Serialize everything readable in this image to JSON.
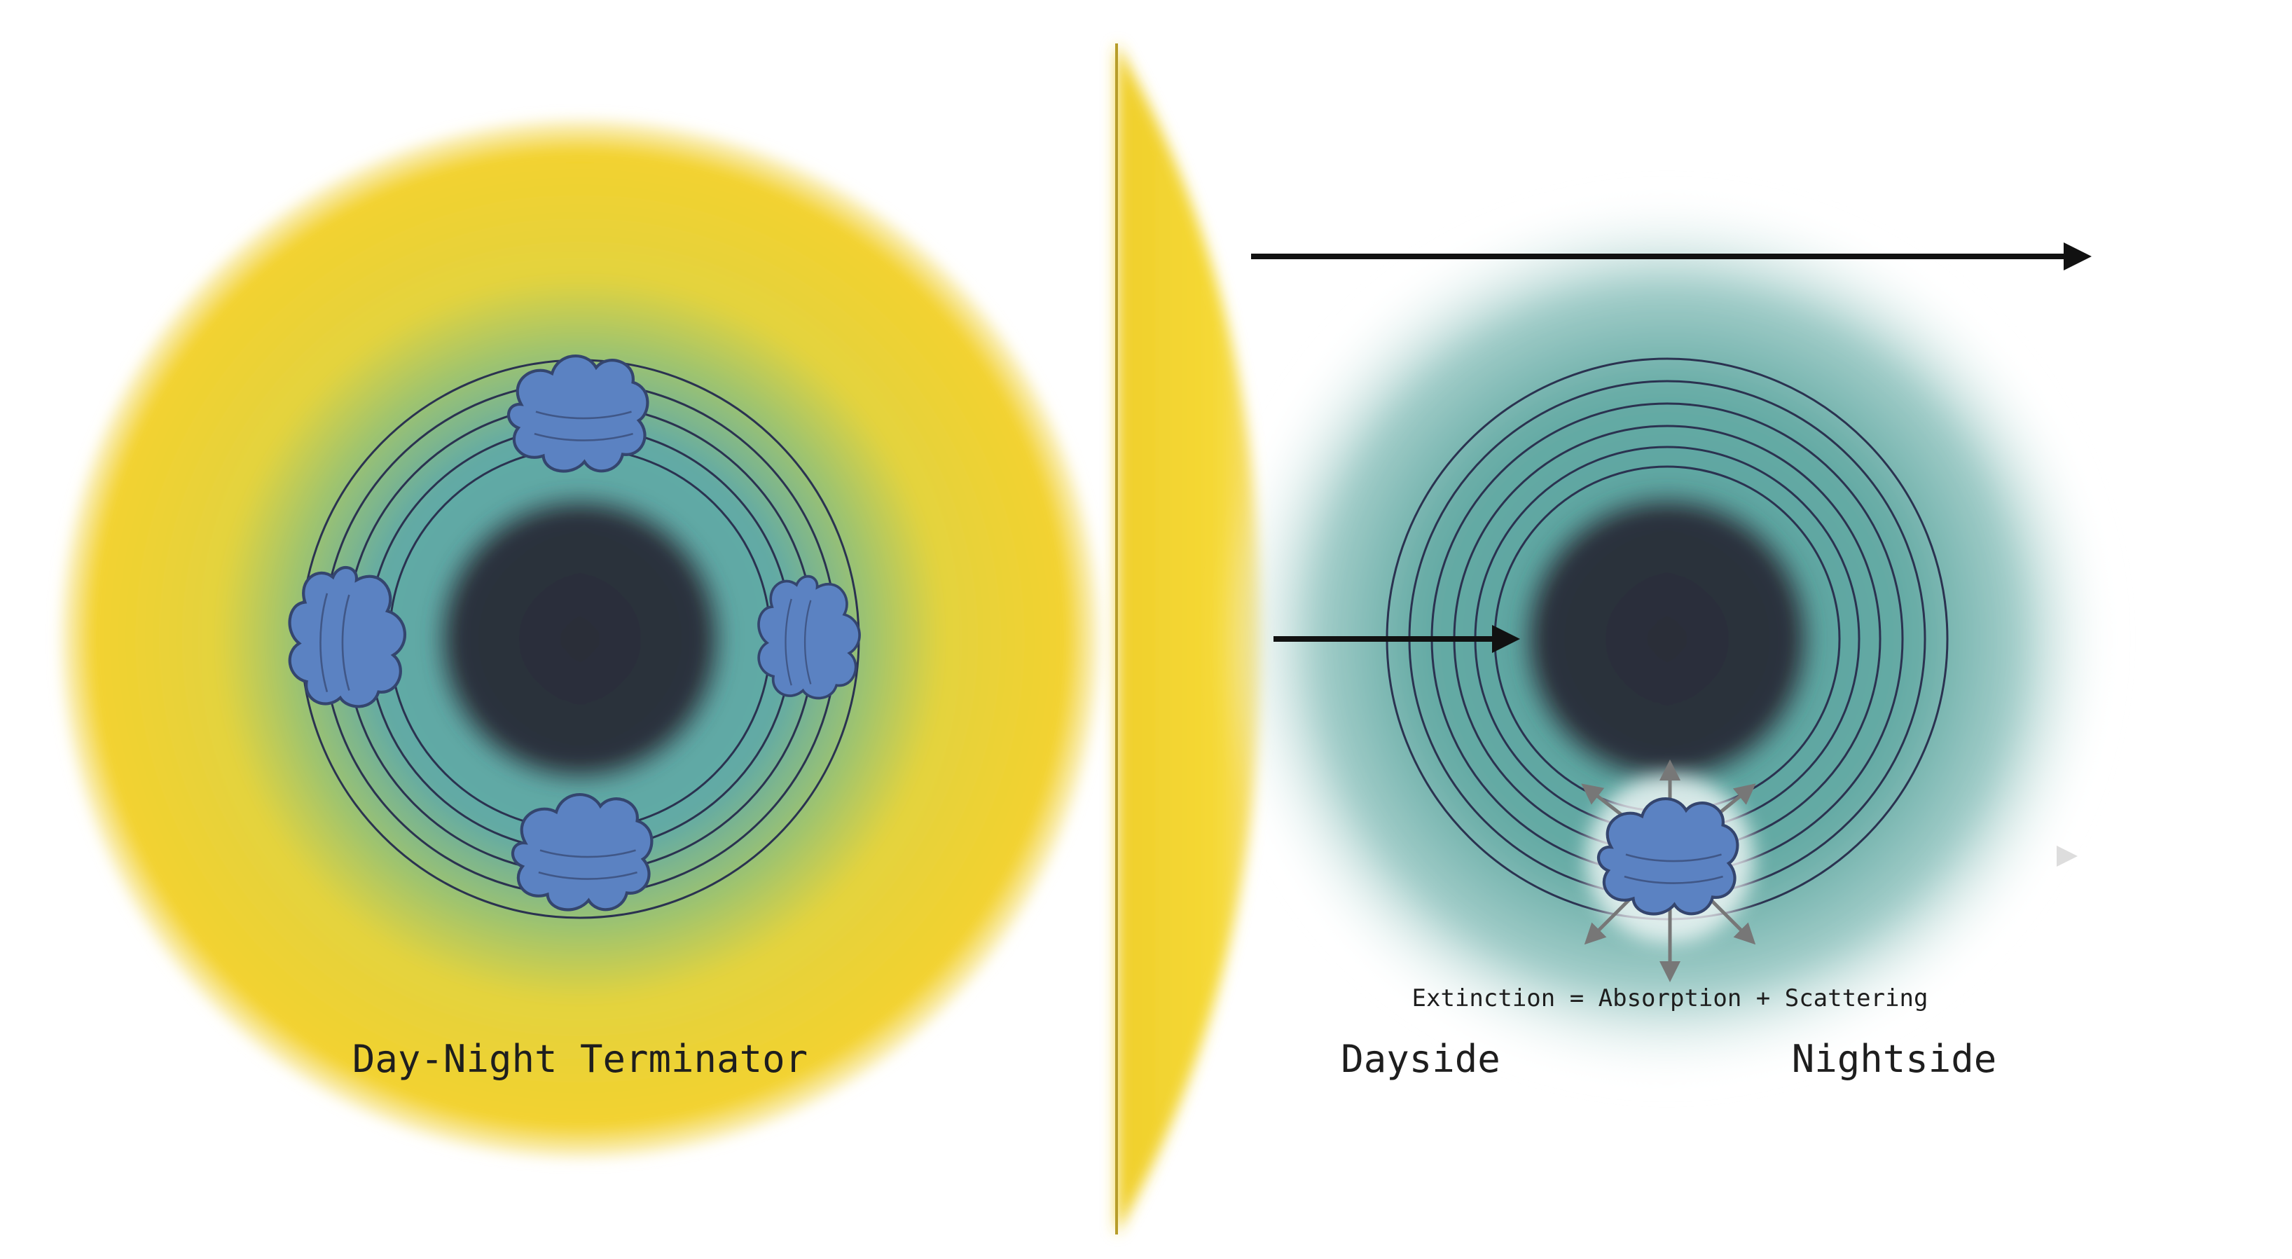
{
  "labels": {
    "terminator": "Day-Night Terminator",
    "dayside": "Dayside",
    "nightside": "Nightside",
    "extinction": "Extinction = Absorption + Scattering"
  },
  "colors": {
    "star": "#f3d22e",
    "atmosphere": "#66aba5",
    "planet": "#2a2e39",
    "cloud": "#5b82c2",
    "cloud_outline": "#34456e",
    "ring": "#2b3250",
    "arrow": "#111111",
    "scatter_arrow": "#777777"
  },
  "icons": {
    "cloud": "cloud-icon",
    "arrow": "arrow-right-icon"
  }
}
